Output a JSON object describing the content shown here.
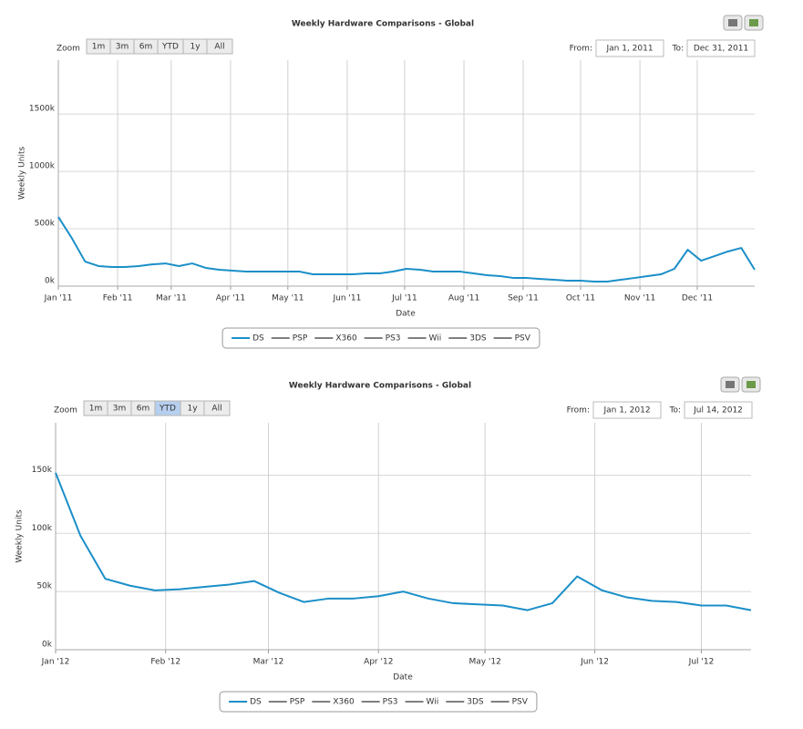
{
  "chart_data": [
    {
      "type": "line",
      "title": "Weekly Hardware Comparisons - Global",
      "zoom_label": "Zoom",
      "zoom_buttons": [
        "1m",
        "3m",
        "6m",
        "YTD",
        "1y",
        "All"
      ],
      "from_label": "From:",
      "from": "Jan 1, 2011",
      "to_label": "To:",
      "to": "Dec 31, 2011",
      "xlabel": "Date",
      "ylabel": "Weekly Units",
      "grid": true,
      "xlim": [
        0,
        52
      ],
      "xticks": [
        {
          "value": 0,
          "label": "Jan '11"
        },
        {
          "value": 4.43,
          "label": "Feb '11"
        },
        {
          "value": 8.43,
          "label": "Mar '11"
        },
        {
          "value": 12.86,
          "label": "Apr '11"
        },
        {
          "value": 17.14,
          "label": "May '11"
        },
        {
          "value": 21.57,
          "label": "Jun '11"
        },
        {
          "value": 25.86,
          "label": "Jul '11"
        },
        {
          "value": 30.29,
          "label": "Aug '11"
        },
        {
          "value": 34.71,
          "label": "Sep '11"
        },
        {
          "value": 39,
          "label": "Oct '11"
        },
        {
          "value": 43.43,
          "label": "Nov '11"
        },
        {
          "value": 47.71,
          "label": "Dec '11"
        }
      ],
      "ylim": [
        0,
        1970000
      ],
      "yticks": [
        {
          "value": 0,
          "label": "0k"
        },
        {
          "value": 500000,
          "label": "500k"
        },
        {
          "value": 1000000,
          "label": "1000k"
        },
        {
          "value": 1500000,
          "label": "1500k"
        }
      ],
      "series": [
        {
          "name": "DS",
          "color": "#1b8fc8",
          "values": [
            603000,
            420000,
            214000,
            175000,
            167000,
            167000,
            175000,
            190000,
            198000,
            175000,
            198000,
            159000,
            143000,
            135000,
            127000,
            127000,
            127000,
            127000,
            127000,
            103000,
            103000,
            103000,
            103000,
            111000,
            111000,
            127000,
            151000,
            143000,
            127000,
            127000,
            127000,
            111000,
            95000,
            87000,
            71000,
            71000,
            63000,
            56000,
            48000,
            48000,
            40000,
            40000,
            56000,
            71000,
            87000,
            103000,
            151000,
            317000,
            222000,
            262000,
            302000,
            333000,
            143000
          ]
        },
        {
          "name": "PSP",
          "color": "#7f7f7f"
        },
        {
          "name": "X360",
          "color": "#7f7f7f"
        },
        {
          "name": "PS3",
          "color": "#7f7f7f"
        },
        {
          "name": "Wii",
          "color": "#7f7f7f"
        },
        {
          "name": "3DS",
          "color": "#7f7f7f"
        },
        {
          "name": "PSV",
          "color": "#7f7f7f"
        }
      ]
    },
    {
      "type": "line",
      "title": "Weekly Hardware Comparisons - Global",
      "zoom_label": "Zoom",
      "zoom_buttons": [
        "1m",
        "3m",
        "6m",
        "YTD",
        "1y",
        "All"
      ],
      "selected_zoom": 3,
      "from_label": "From:",
      "from": "Jan 1, 2012",
      "to_label": "To:",
      "to": "Jul 14, 2012",
      "xlabel": "Date",
      "ylabel": "Weekly Units",
      "grid": true,
      "xlim": [
        0,
        28
      ],
      "xticks": [
        {
          "value": 0,
          "label": "Jan '12"
        },
        {
          "value": 4.43,
          "label": "Feb '12"
        },
        {
          "value": 8.57,
          "label": "Mar '12"
        },
        {
          "value": 13,
          "label": "Apr '12"
        },
        {
          "value": 17.29,
          "label": "May '12"
        },
        {
          "value": 21.71,
          "label": "Jun '12"
        },
        {
          "value": 26,
          "label": "Jul '12"
        }
      ],
      "ylim": [
        0,
        195000
      ],
      "yticks": [
        {
          "value": 0,
          "label": "0k"
        },
        {
          "value": 50000,
          "label": "50k"
        },
        {
          "value": 100000,
          "label": "100k"
        },
        {
          "value": 150000,
          "label": "150k"
        }
      ],
      "series": [
        {
          "name": "DS",
          "color": "#1b8fc8",
          "values": [
            152000,
            98000,
            61000,
            55000,
            51000,
            52000,
            54000,
            56000,
            59000,
            49000,
            41000,
            44000,
            44000,
            46000,
            50000,
            44000,
            40000,
            39000,
            38000,
            34000,
            40000,
            63000,
            51000,
            45000,
            42000,
            41000,
            38000,
            38000,
            34000
          ]
        },
        {
          "name": "PSP",
          "color": "#7f7f7f"
        },
        {
          "name": "X360",
          "color": "#7f7f7f"
        },
        {
          "name": "PS3",
          "color": "#7f7f7f"
        },
        {
          "name": "Wii",
          "color": "#7f7f7f"
        },
        {
          "name": "3DS",
          "color": "#7f7f7f"
        },
        {
          "name": "PSV",
          "color": "#7f7f7f"
        }
      ]
    }
  ]
}
